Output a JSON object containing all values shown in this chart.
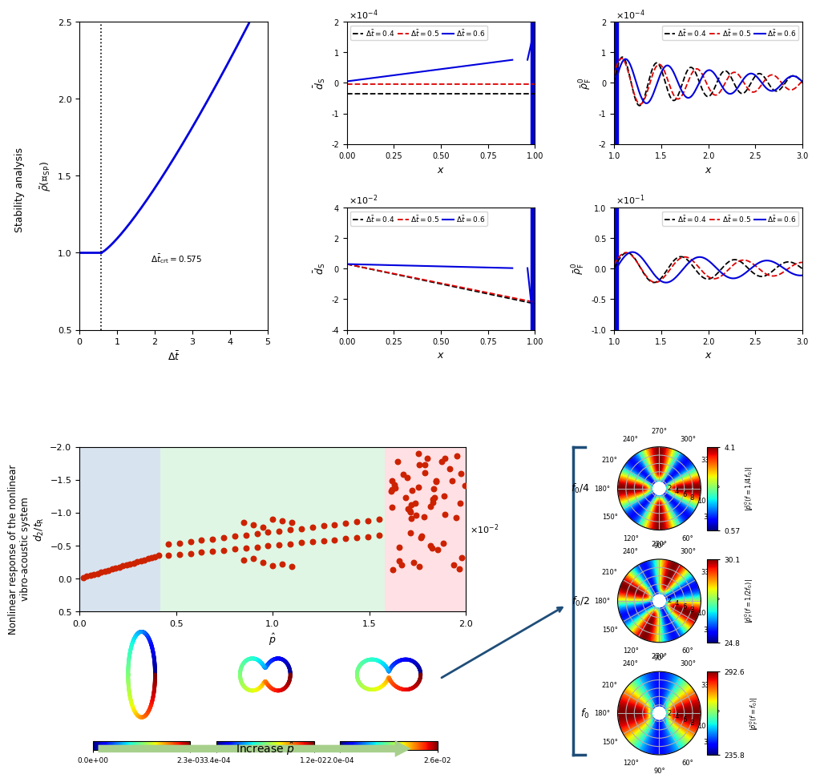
{
  "fig_width": 10.02,
  "fig_height": 9.53,
  "dpi": 100,
  "stability_plot": {
    "xlim": [
      0,
      5
    ],
    "ylim": [
      0.5,
      2.5
    ],
    "xticks": [
      0,
      1,
      2,
      3,
      4,
      5
    ],
    "yticks": [
      0.5,
      1.0,
      1.5,
      2.0,
      2.5
    ],
    "xlabel": "$\\Delta\\bar{t}$",
    "ylabel": "$\\tilde{\\rho}(\\mathcal{A}_{\\mathrm{SP}})$",
    "vline_x": 0.575,
    "vline_label": "$\\Delta\\bar{t}_{\\mathrm{crt}}=0.575$"
  },
  "ds_top": {
    "xlim": [
      0.0,
      1.0
    ],
    "ylim": [
      -2,
      2
    ],
    "xticks": [
      0.0,
      0.25,
      0.5,
      0.75,
      1.0
    ],
    "yticks": [
      -2,
      -1,
      0,
      1,
      2
    ],
    "xlabel": "$x$",
    "ylabel": "$\\bar{d}_{\\mathrm{S}}$",
    "scale_label": "$\\times 10^{-4}$",
    "legend": [
      "$\\Delta\\bar{t}=0.4$",
      "$\\Delta\\bar{t}=0.5$",
      "$\\Delta\\bar{t}=0.6$"
    ]
  },
  "ds_bot": {
    "xlim": [
      0.0,
      1.0
    ],
    "ylim": [
      -4,
      4
    ],
    "xticks": [
      0.0,
      0.25,
      0.5,
      0.75,
      1.0
    ],
    "yticks": [
      -4,
      -2,
      0,
      2,
      4
    ],
    "xlabel": "$x$",
    "ylabel": "$\\bar{d}_{\\mathrm{S}}$",
    "scale_label": "$\\times 10^{-2}$",
    "legend": [
      "$\\Delta\\bar{t}=0.4$",
      "$\\Delta\\bar{t}=0.5$",
      "$\\Delta\\bar{t}=0.6$"
    ]
  },
  "rhoF_top": {
    "xlim": [
      1.0,
      3.0
    ],
    "ylim": [
      -2,
      2
    ],
    "xticks": [
      1.0,
      1.5,
      2.0,
      2.5,
      3.0
    ],
    "yticks": [
      -2,
      -1,
      0,
      1,
      2
    ],
    "xlabel": "$x$",
    "ylabel": "$\\bar{\\rho}^{\\prime}_{\\mathrm{F}}$",
    "scale_label": "$\\times 10^{-4}$",
    "legend": [
      "$\\Delta\\bar{t}=0.4$",
      "$\\Delta\\bar{t}=0.5$",
      "$\\Delta\\bar{t}=0.6$"
    ]
  },
  "rhoF_bot": {
    "xlim": [
      1.0,
      3.0
    ],
    "ylim": [
      -1.0,
      1.0
    ],
    "xticks": [
      1.0,
      1.5,
      2.0,
      2.5,
      3.0
    ],
    "yticks": [
      -1.0,
      -0.5,
      0,
      0.5,
      1.0
    ],
    "xlabel": "$x$",
    "ylabel": "$\\bar{\\rho}^{\\prime}_{\\mathrm{F}}$",
    "scale_label": "$\\times 10^{-1}$",
    "legend": [
      "$\\Delta\\bar{t}=0.4$",
      "$\\Delta\\bar{t}=0.5$",
      "$\\Delta\\bar{t}=0.6$"
    ]
  },
  "bifurcation": {
    "xlim": [
      0.0,
      2.0
    ],
    "ylim": [
      0.5,
      -2.0
    ],
    "xlabel": "$\\hat{p}$",
    "ylabel": "$d_2 / t_{\\mathrm{R}}$",
    "scale_label": "$\\times 10^{-2}$",
    "bg_blue": [
      0.0,
      0.42
    ],
    "bg_green": [
      0.42,
      1.58
    ],
    "bg_red": [
      1.58,
      2.02
    ],
    "xticks": [
      0.0,
      0.5,
      1.0,
      1.5,
      2.0
    ],
    "yticks": [
      -2.0,
      -1.5,
      -1.0,
      -0.5,
      0.0,
      0.5
    ]
  },
  "colors": {
    "black_dashed": "#000000",
    "red_dashed": "#dd0000",
    "blue_solid": "#0000dd",
    "dot_red": "#cc2200"
  },
  "polar_plots": {
    "labels": [
      "$f_0/4$",
      "$f_0/2$",
      "$f_0$"
    ],
    "clabels": [
      "$|\\bar{p}^{\\prime}_{\\mathrm{F}}(f{=}1/4f_0)|$",
      "$|\\bar{p}^{\\prime}_{\\mathrm{F}}(f{=}1/2f_0)|$",
      "$|\\bar{p}^{\\prime}_{\\mathrm{F}}(f{=}f_0)|$"
    ],
    "cmins": [
      0.57,
      24.8,
      235.8
    ],
    "cmaxs": [
      4.1,
      30.1,
      292.6
    ],
    "n_lobes": [
      4,
      4,
      2
    ]
  },
  "colorbar_labels": [
    [
      "0.0e+00",
      "2.3e-03"
    ],
    [
      "3.4e-04",
      "1.2e-02"
    ],
    [
      "2.0e-04",
      "2.6e-02"
    ]
  ],
  "arrow_text": "Increase $\\hat{p}$"
}
